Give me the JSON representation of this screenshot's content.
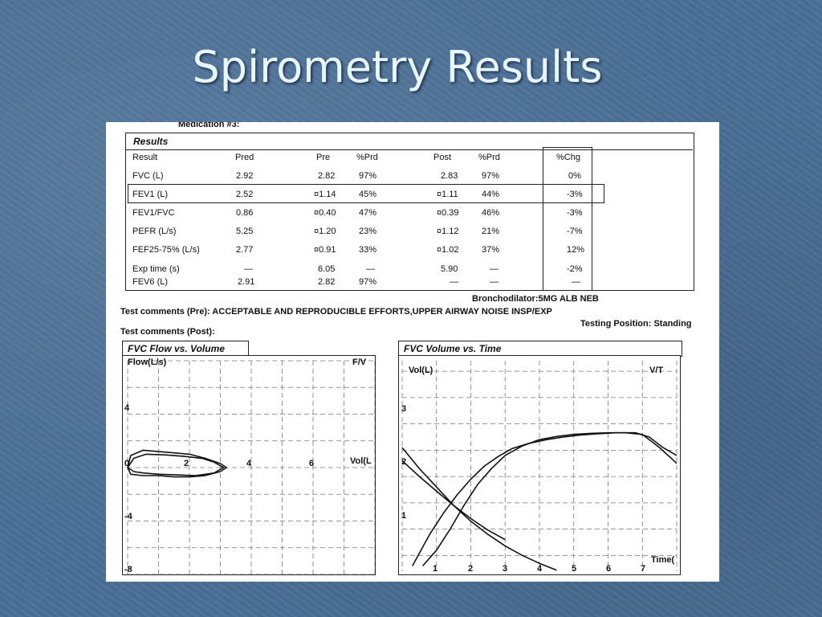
{
  "slide": {
    "title": "Spirometry Results"
  },
  "report": {
    "medication": "Medication #3:",
    "section_title": "Results",
    "columns": [
      "Result",
      "Pred",
      "Pre",
      "%Prd",
      "Post",
      "%Prd",
      "%Chg"
    ],
    "rows": [
      {
        "result": "FVC  (L)",
        "pred": "2.92",
        "pre": "2.82",
        "pre_pct": "97%",
        "post": "2.83",
        "post_pct": "97%",
        "chg": "0%"
      },
      {
        "result": "FEV1  (L)",
        "pred": "2.52",
        "pre": "¤1.14",
        "pre_pct": "45%",
        "post": "¤1.11",
        "post_pct": "44%",
        "chg": "-3%"
      },
      {
        "result": "FEV1/FVC",
        "pred": "0.86",
        "pre": "¤0.40",
        "pre_pct": "47%",
        "post": "¤0.39",
        "post_pct": "46%",
        "chg": "-3%"
      },
      {
        "result": "PEFR  (L/s)",
        "pred": "5.25",
        "pre": "¤1.20",
        "pre_pct": "23%",
        "post": "¤1.12",
        "post_pct": "21%",
        "chg": "-7%"
      },
      {
        "result": "FEF25-75%  (L/s)",
        "pred": "2.77",
        "pre": "¤0.91",
        "pre_pct": "33%",
        "post": "¤1.02",
        "post_pct": "37%",
        "chg": "12%"
      },
      {
        "result": "Exp time  (s)",
        "pred": "—",
        "pre": "6.05",
        "pre_pct": "—",
        "post": "5.90",
        "post_pct": "—",
        "chg": "-2%"
      },
      {
        "result": "FEV6  (L)",
        "pred": "2.91",
        "pre": "2.82",
        "pre_pct": "97%",
        "post": "—",
        "post_pct": "—",
        "chg": "—"
      }
    ],
    "bronchodilator": "Bronchodilator:5MG ALB NEB",
    "comments_pre": "Test comments (Pre): ACCEPTABLE AND REPRODUCIBLE EFFORTS,UPPER AIRWAY NOISE INSP/EXP",
    "testing_position": "Testing Position:   Standing",
    "comments_post": "Test comments (Post):"
  },
  "chart_data": [
    {
      "type": "line",
      "title": "FVC Flow vs. Volume",
      "ylabel": "Flow(L/s)",
      "xlabel": "Vol(L",
      "corner_label": "F/V",
      "x_ticks": [
        "0",
        "2",
        "4",
        "6"
      ],
      "y_ticks": [
        "4",
        "-4",
        "-8"
      ],
      "xlim": [
        0,
        8
      ],
      "ylim": [
        -8,
        8
      ],
      "grid": true,
      "series": [
        {
          "x": [
            0,
            0.1,
            0.5,
            1.0,
            1.5,
            2.0,
            2.5,
            3.0,
            3.2,
            3.0,
            2.5,
            2.0,
            1.5,
            1.0,
            0.5,
            0.1,
            0
          ],
          "y": [
            0,
            0.9,
            1.3,
            1.2,
            1.1,
            1.0,
            0.7,
            0.3,
            0,
            -0.3,
            -0.6,
            -0.7,
            -0.7,
            -0.6,
            -0.6,
            -0.5,
            0
          ]
        },
        {
          "x": [
            0,
            0.2,
            0.6,
            1.2,
            1.8,
            2.4,
            2.8,
            3.1,
            2.8,
            2.2,
            1.6,
            1.0,
            0.5,
            0.2,
            0
          ],
          "y": [
            0,
            0.7,
            1.0,
            0.95,
            0.85,
            0.7,
            0.4,
            0,
            -0.4,
            -0.6,
            -0.55,
            -0.5,
            -0.4,
            -0.3,
            0
          ]
        }
      ]
    },
    {
      "type": "line",
      "title": "FVC Volume vs. Time",
      "ylabel": "Vol(L)",
      "xlabel": "Time(",
      "corner_label": "V/T",
      "x_ticks": [
        "1",
        "2",
        "3",
        "4",
        "5",
        "6",
        "7"
      ],
      "y_ticks": [
        "1",
        "2",
        "3"
      ],
      "xlim": [
        0,
        8
      ],
      "ylim": [
        0.2,
        4.2
      ],
      "grid": true,
      "series": [
        {
          "x": [
            0.6,
            1.0,
            1.4,
            1.8,
            2.2,
            2.6,
            3.0,
            3.5,
            4.0,
            4.5,
            5.0,
            5.5,
            6.0,
            6.5,
            7.0,
            7.5,
            8.0
          ],
          "y": [
            0.3,
            0.6,
            1.0,
            1.45,
            1.85,
            2.15,
            2.4,
            2.58,
            2.7,
            2.76,
            2.8,
            2.82,
            2.83,
            2.83,
            2.8,
            2.55,
            2.25
          ]
        },
        {
          "x": [
            0.3,
            0.8,
            1.2,
            1.6,
            2.0,
            2.4,
            2.8,
            3.2,
            3.7,
            4.2,
            4.7,
            5.2,
            5.7,
            6.2,
            6.8,
            7.2,
            7.6,
            8.0
          ],
          "y": [
            0.3,
            0.9,
            1.3,
            1.65,
            1.95,
            2.2,
            2.38,
            2.53,
            2.63,
            2.7,
            2.75,
            2.79,
            2.81,
            2.83,
            2.83,
            2.75,
            2.55,
            2.4
          ]
        },
        {
          "x": [
            0,
            0.5,
            1.0,
            1.5,
            2.0,
            2.5,
            3.0
          ],
          "y": [
            2.55,
            2.15,
            1.8,
            1.45,
            1.2,
            0.98,
            0.8
          ]
        },
        {
          "x": [
            0,
            0.5,
            1.0,
            1.5,
            2.0,
            2.5,
            3.0,
            3.5,
            4.0,
            4.5
          ],
          "y": [
            2.3,
            2.0,
            1.72,
            1.45,
            1.15,
            0.9,
            0.68,
            0.5,
            0.35,
            0.22
          ]
        }
      ]
    }
  ]
}
